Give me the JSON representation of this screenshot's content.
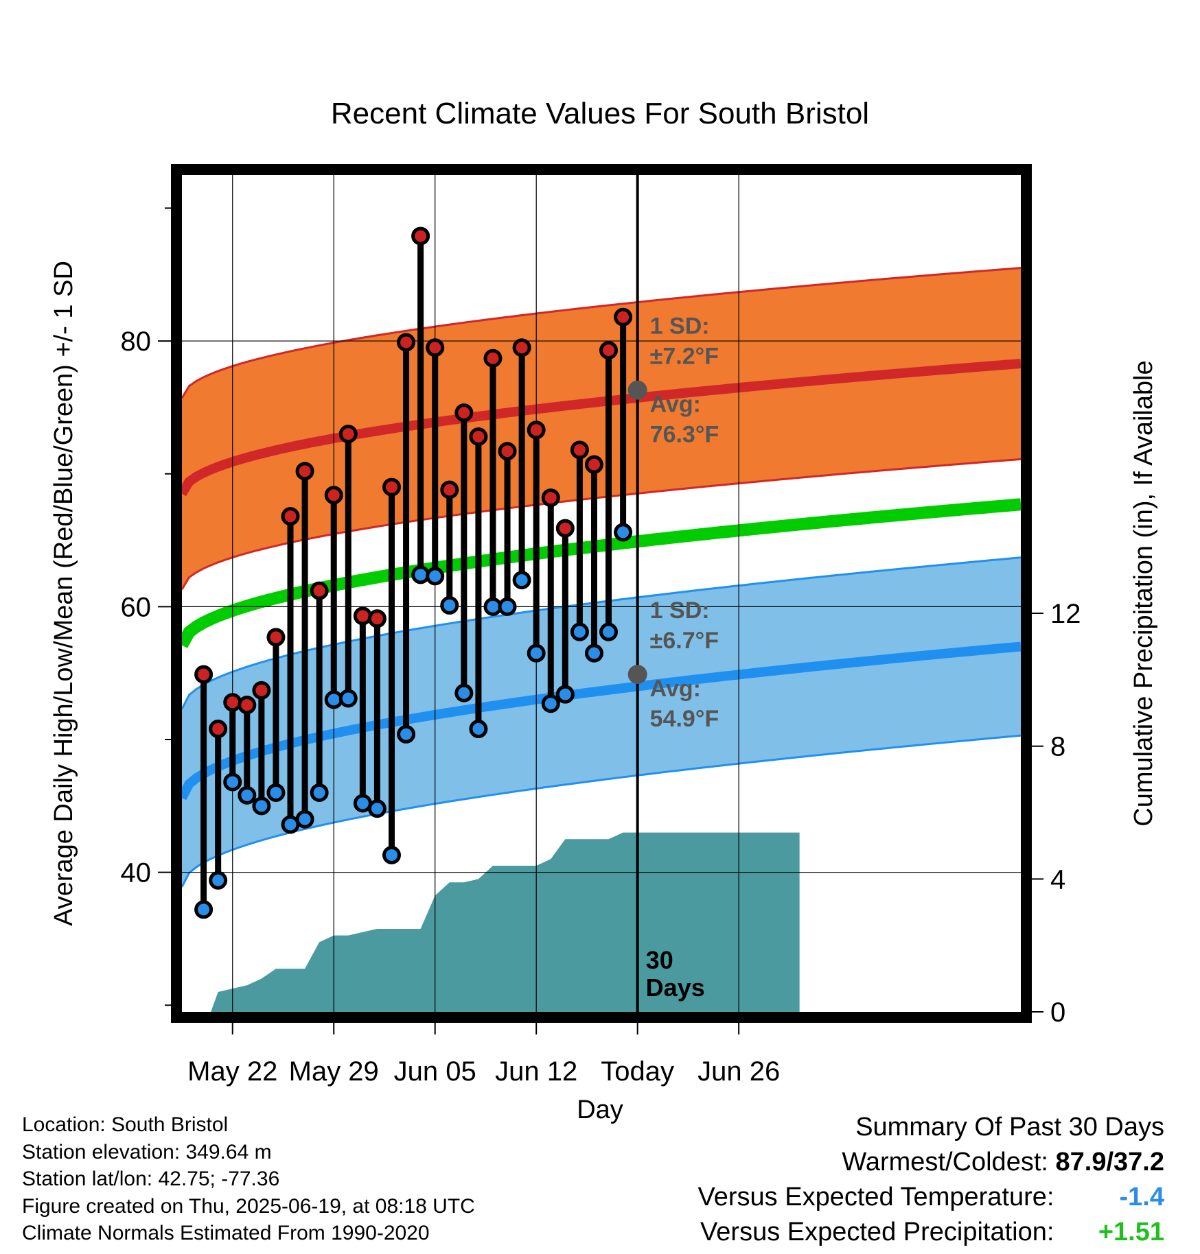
{
  "chart_data": {
    "type": "line",
    "title": "Recent Climate Values For South Bristol",
    "xlabel": "Day",
    "ylabel_left": "Average Daily High/Low/Mean (Red/Blue/Green) +/- 1 SD",
    "ylabel_right": "Cumulative Precipitation (in), If Available",
    "xlim": [
      -3.5,
      54.5
    ],
    "ylim_temp": [
      29.5,
      92.5
    ],
    "ylim_precip": [
      0,
      25.2
    ],
    "x_ticks": [
      {
        "x": 0,
        "label": "May 22"
      },
      {
        "x": 7,
        "label": "May 29"
      },
      {
        "x": 14,
        "label": "Jun 05"
      },
      {
        "x": 21,
        "label": "Jun 12"
      },
      {
        "x": 28,
        "label": "Today"
      },
      {
        "x": 35,
        "label": "Jun 26"
      }
    ],
    "y_ticks_left": [
      40,
      60,
      80
    ],
    "y_ticks_right": [
      0,
      4,
      8,
      12
    ],
    "today_x": 28,
    "days": [
      -2,
      -1,
      0,
      1,
      2,
      3,
      4,
      5,
      6,
      7,
      8,
      9,
      10,
      11,
      12,
      13,
      14,
      15,
      16,
      17,
      18,
      19,
      20,
      21,
      22,
      23,
      24,
      25,
      26,
      27
    ],
    "daily_high": [
      54.9,
      50.8,
      52.8,
      52.6,
      53.7,
      57.7,
      66.8,
      70.2,
      61.2,
      68.4,
      73.0,
      59.3,
      59.1,
      69.0,
      79.9,
      87.9,
      79.5,
      68.8,
      74.6,
      72.8,
      78.7,
      71.7,
      79.5,
      73.3,
      68.2,
      65.9,
      71.8,
      70.7,
      79.3,
      81.8
    ],
    "daily_low": [
      37.2,
      39.4,
      46.8,
      45.8,
      45.0,
      46.0,
      43.6,
      44.0,
      46.0,
      53.0,
      53.1,
      45.2,
      44.8,
      41.3,
      50.4,
      62.4,
      62.3,
      60.1,
      53.5,
      50.8,
      60.0,
      60.0,
      62.0,
      56.5,
      52.7,
      53.4,
      58.1,
      56.5,
      58.1,
      65.6
    ],
    "normal_high": {
      "start": 68.5,
      "end": 78.3,
      "sd": 7.2,
      "label_sd": "1 SD:",
      "label_sd_value": "±7.2°F",
      "label_avg": "Avg:",
      "label_avg_value": "76.3°F",
      "today_value": 76.3
    },
    "normal_low": {
      "start": 45.6,
      "end": 57.0,
      "sd": 6.7,
      "label_sd": "1 SD:",
      "label_sd_value": "±6.7°F",
      "label_avg": "Avg:",
      "label_avg_value": "54.9°F",
      "today_value": 54.9
    },
    "normal_mean": {
      "start": 57.1,
      "end": 67.7
    },
    "precip_cumulative": [
      [
        -2.5,
        0.0
      ],
      [
        -1.5,
        0.0
      ],
      [
        -1,
        0.6
      ],
      [
        0,
        0.7
      ],
      [
        1,
        0.8
      ],
      [
        2,
        1.0
      ],
      [
        3,
        1.3
      ],
      [
        4,
        1.3
      ],
      [
        5,
        1.3
      ],
      [
        6,
        2.1
      ],
      [
        7,
        2.3
      ],
      [
        8,
        2.3
      ],
      [
        9,
        2.4
      ],
      [
        10,
        2.5
      ],
      [
        11,
        2.5
      ],
      [
        12,
        2.5
      ],
      [
        13,
        2.5
      ],
      [
        14,
        3.5
      ],
      [
        15,
        3.9
      ],
      [
        16,
        3.9
      ],
      [
        17,
        4.0
      ],
      [
        18,
        4.4
      ],
      [
        19,
        4.4
      ],
      [
        20,
        4.4
      ],
      [
        21,
        4.4
      ],
      [
        22,
        4.6
      ],
      [
        23,
        5.2
      ],
      [
        24,
        5.2
      ],
      [
        25,
        5.2
      ],
      [
        26,
        5.2
      ],
      [
        27,
        5.4
      ],
      [
        28,
        5.4
      ],
      [
        29,
        5.4
      ],
      [
        30,
        5.4
      ],
      [
        31,
        5.4
      ],
      [
        32,
        5.4
      ],
      [
        33,
        5.4
      ],
      [
        34,
        5.4
      ],
      [
        35,
        5.4
      ],
      [
        36,
        5.4
      ],
      [
        37,
        5.4
      ],
      [
        38,
        5.4
      ],
      [
        39.2,
        5.4
      ]
    ],
    "days_label_line1": "30",
    "days_label_line2": "Days",
    "colors": {
      "high_band": "#f07a30",
      "high_line": "#d02828",
      "low_band": "#80c0e8",
      "low_line": "#2090f0",
      "mean_line": "#00cc00",
      "precip": "#4a9aa0",
      "high_marker": "#cc2222",
      "low_marker": "#2a8ee8",
      "annotation": "#555555"
    }
  },
  "info": {
    "location": "Location: South Bristol",
    "elevation": "Station elevation: 349.64 m",
    "latlon": "Station lat/lon: 42.75; -77.36",
    "created": "Figure created on Thu, 2025-06-19, at 08:18 UTC",
    "normals": "Climate Normals Estimated From 1990-2020"
  },
  "summary": {
    "heading": "Summary Of Past 30 Days",
    "warm_cold_label": "Warmest/Coldest:",
    "warm_cold_value": "87.9/37.2",
    "temp_label": "Versus Expected Temperature:",
    "temp_value": "-1.4",
    "temp_color": "#2a8ee8",
    "precip_label": "Versus Expected Precipitation:",
    "precip_value": "+1.51",
    "precip_color": "#1fbf1f"
  }
}
